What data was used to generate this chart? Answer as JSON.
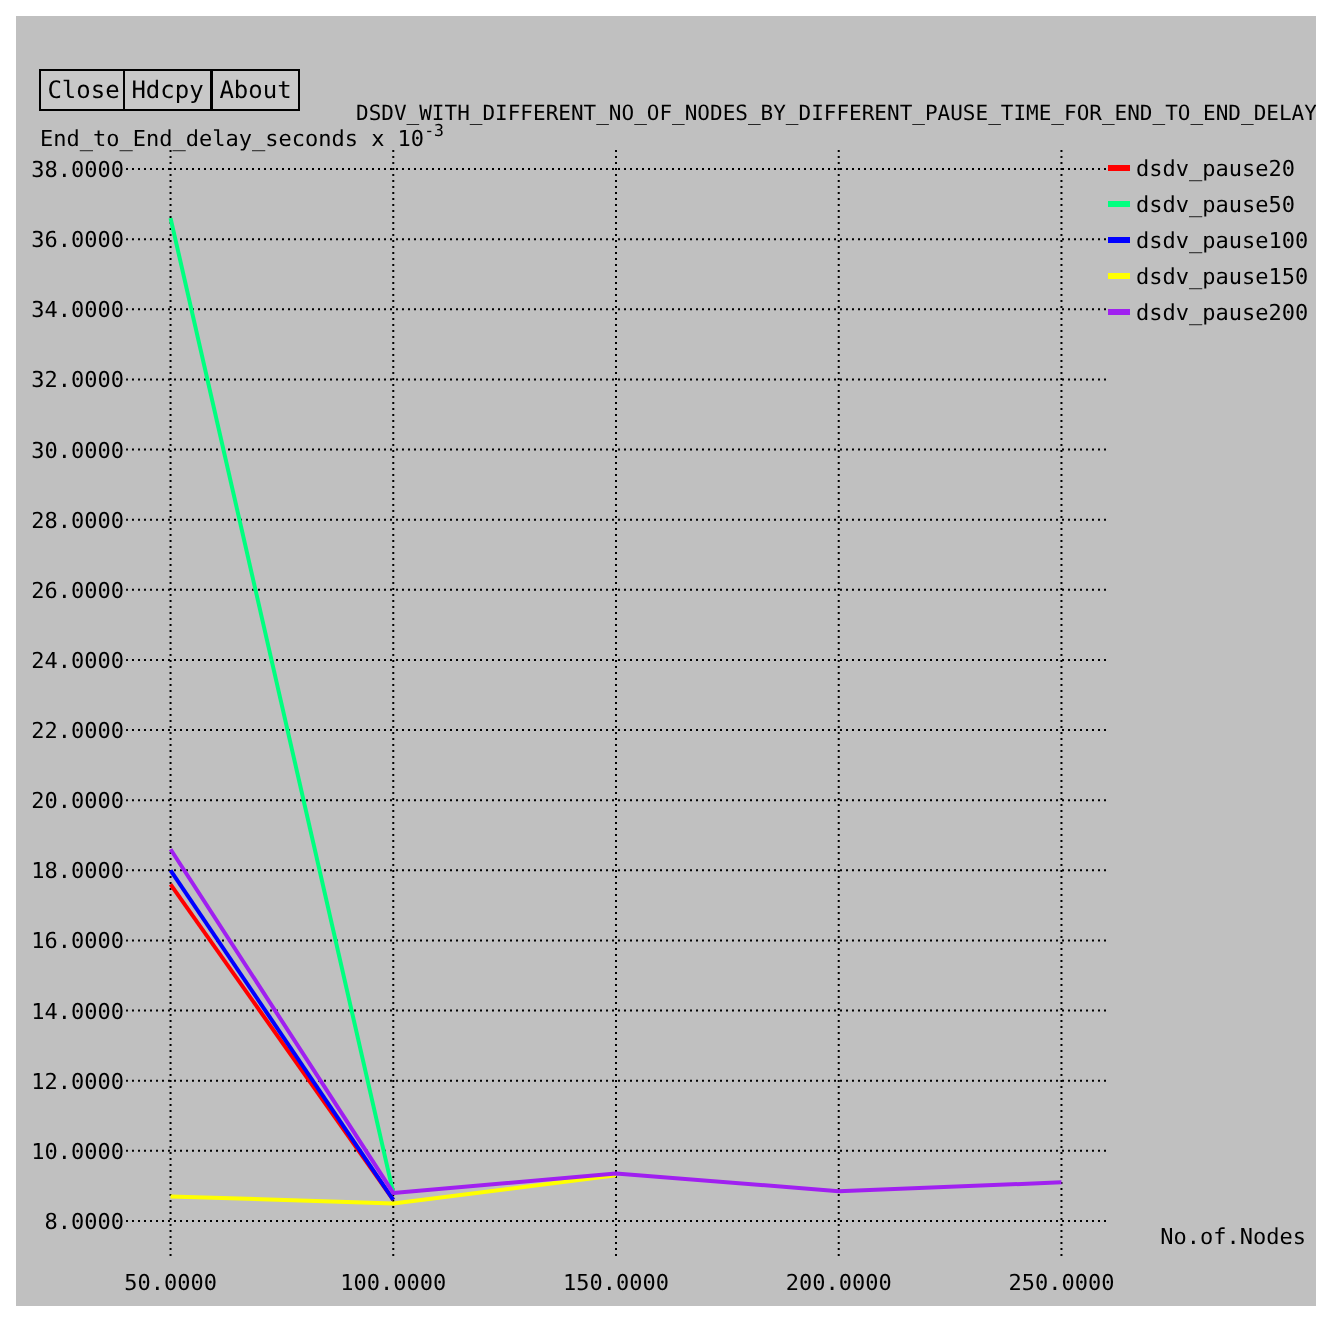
{
  "chart_data": {
    "type": "line",
    "title": "DSDV_WITH_DIFFERENT_NO_OF_NODES_BY_DIFFERENT_PAUSE_TIME_FOR_END_TO_END_DELAY",
    "ylabel": "End_to_End_delay_seconds x 10$^{-3}$",
    "xlabel": "No.of.Nodes",
    "annotations": [
      "Close",
      "Hdcpy",
      "About"
    ],
    "x": [
      50,
      100,
      150,
      200,
      250
    ],
    "xlim": [
      40,
      260
    ],
    "xticks": [
      {
        "value": 50,
        "label": "50.0000"
      },
      {
        "value": 100,
        "label": "100.0000"
      },
      {
        "value": 150,
        "label": "150.0000"
      },
      {
        "value": 200,
        "label": "200.0000"
      },
      {
        "value": 250,
        "label": "250.0000"
      }
    ],
    "ylim": [
      7,
      38.6
    ],
    "yticks": [
      {
        "value": 8,
        "label": "8.0000"
      },
      {
        "value": 10,
        "label": "10.0000"
      },
      {
        "value": 12,
        "label": "12.0000"
      },
      {
        "value": 14,
        "label": "14.0000"
      },
      {
        "value": 16,
        "label": "16.0000"
      },
      {
        "value": 18,
        "label": "18.0000"
      },
      {
        "value": 20,
        "label": "20.0000"
      },
      {
        "value": 22,
        "label": "22.0000"
      },
      {
        "value": 24,
        "label": "24.0000"
      },
      {
        "value": 26,
        "label": "26.0000"
      },
      {
        "value": 28,
        "label": "28.0000"
      },
      {
        "value": 30,
        "label": "30.0000"
      },
      {
        "value": 32,
        "label": "32.0000"
      },
      {
        "value": 34,
        "label": "34.0000"
      },
      {
        "value": 36,
        "label": "36.0000"
      },
      {
        "value": 38,
        "label": "38.0000"
      }
    ],
    "grid": true,
    "legend": "top right",
    "marker": "none",
    "line_style": "solid",
    "series": [
      {
        "name": "dsdv_pause20",
        "color": "#ff0000",
        "values": [
          17.6,
          8.6,
          null,
          null,
          null
        ]
      },
      {
        "name": "dsdv_pause50",
        "color": "#00ff7f",
        "values": [
          36.6,
          8.8,
          null,
          null,
          null
        ]
      },
      {
        "name": "dsdv_pause100",
        "color": "#0000ff",
        "values": [
          18.0,
          8.6,
          null,
          null,
          null
        ]
      },
      {
        "name": "dsdv_pause150",
        "color": "#ffff00",
        "values": [
          8.7,
          8.5,
          9.3,
          null,
          null
        ]
      },
      {
        "name": "dsdv_pause200",
        "color": "#a020f0",
        "values": [
          18.6,
          8.8,
          9.35,
          8.85,
          9.1
        ]
      }
    ]
  }
}
